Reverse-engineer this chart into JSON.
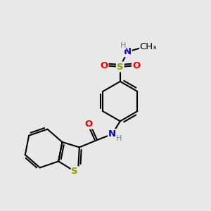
{
  "bg": "#e8e8e8",
  "bond_color": "#000000",
  "bw": 1.5,
  "atom_colors": {
    "C": "#000000",
    "H": "#5f9090",
    "N": "#0000cc",
    "O": "#ee0000",
    "S": "#999900"
  },
  "fs": 9.5,
  "fs_sm": 8.0
}
